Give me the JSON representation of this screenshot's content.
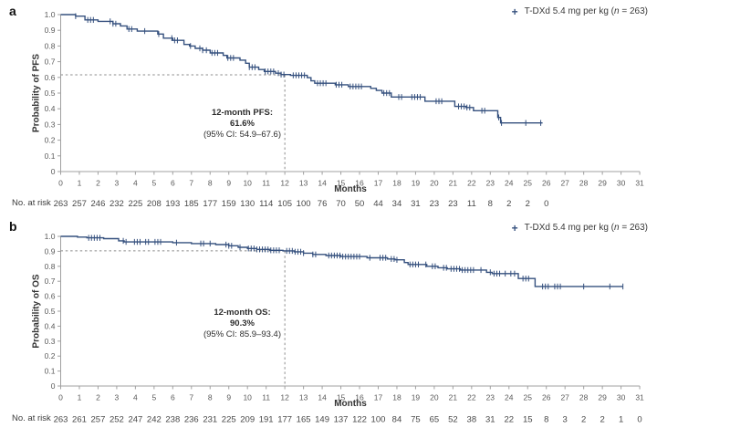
{
  "colors": {
    "curve": "#35507E",
    "dashed_line": "#8C8C8C",
    "axis": "#A0A0A0",
    "label_text": "#333333",
    "tick_text": "#5A5A5A",
    "risk_text": "#474747"
  },
  "chart_data": [
    {
      "type": "line",
      "subtype": "kaplan-meier-step",
      "panel_label": "a",
      "ylabel": "Probability of PFS",
      "xlabel": "Months",
      "legend": {
        "marker": "+",
        "series_prefix": "T-DXd 5.4 mg per kg (",
        "series_n": "n",
        "series_suffix": " = 263)"
      },
      "annotation": {
        "title": "12-month PFS:",
        "value": "61.6%",
        "ci": "(95% CI: 54.9–67.6)"
      },
      "reference": {
        "x_month": 12,
        "y_prob": 0.616
      },
      "xlim": [
        0,
        31
      ],
      "ylim": [
        0,
        1.0
      ],
      "x_ticks": [
        0,
        1,
        2,
        3,
        4,
        5,
        6,
        7,
        8,
        9,
        10,
        11,
        12,
        13,
        14,
        15,
        16,
        17,
        18,
        19,
        20,
        21,
        22,
        23,
        24,
        25,
        26,
        27,
        28,
        29,
        30,
        31
      ],
      "y_tick_labels": [
        "0",
        "0.1",
        "0.2",
        "0.3",
        "0.4",
        "0.5",
        "0.6",
        "0.7",
        "0.8",
        "0.9",
        "1.0"
      ],
      "risk_label": "No. at risk",
      "risk_values": [
        263,
        257,
        246,
        232,
        225,
        208,
        193,
        185,
        177,
        159,
        130,
        114,
        105,
        100,
        76,
        70,
        50,
        44,
        34,
        31,
        23,
        23,
        11,
        8,
        2,
        2,
        0
      ],
      "curve_points": [
        [
          0,
          1.0
        ],
        [
          0.8,
          0.99
        ],
        [
          1.3,
          0.966
        ],
        [
          2.0,
          0.957
        ],
        [
          2.8,
          0.942
        ],
        [
          3.2,
          0.928
        ],
        [
          3.55,
          0.908
        ],
        [
          4.1,
          0.895
        ],
        [
          5.2,
          0.876
        ],
        [
          5.5,
          0.85
        ],
        [
          6.0,
          0.836
        ],
        [
          6.6,
          0.81
        ],
        [
          6.9,
          0.8
        ],
        [
          7.2,
          0.785
        ],
        [
          7.6,
          0.773
        ],
        [
          8.0,
          0.756
        ],
        [
          8.7,
          0.74
        ],
        [
          8.9,
          0.724
        ],
        [
          9.6,
          0.71
        ],
        [
          9.9,
          0.69
        ],
        [
          10.1,
          0.665
        ],
        [
          10.6,
          0.65
        ],
        [
          10.9,
          0.638
        ],
        [
          11.5,
          0.627
        ],
        [
          11.8,
          0.618
        ],
        [
          12.3,
          0.613
        ],
        [
          13.2,
          0.598
        ],
        [
          13.4,
          0.578
        ],
        [
          13.6,
          0.563
        ],
        [
          14.7,
          0.553
        ],
        [
          15.4,
          0.542
        ],
        [
          16.6,
          0.53
        ],
        [
          16.9,
          0.517
        ],
        [
          17.2,
          0.5
        ],
        [
          17.7,
          0.475
        ],
        [
          19.5,
          0.448
        ],
        [
          21.1,
          0.415
        ],
        [
          21.7,
          0.408
        ],
        [
          22.1,
          0.388
        ],
        [
          23.4,
          0.345
        ],
        [
          23.55,
          0.31
        ],
        [
          25.8,
          0.31
        ]
      ],
      "censor_months": [
        0.8,
        1.45,
        1.6,
        1.75,
        2.65,
        2.8,
        2.95,
        3.65,
        3.8,
        4.5,
        5.25,
        5.95,
        6.1,
        6.25,
        6.95,
        7.45,
        7.6,
        7.8,
        8.1,
        8.25,
        8.4,
        8.95,
        9.1,
        9.25,
        10.1,
        10.25,
        10.4,
        10.95,
        11.1,
        11.25,
        11.4,
        11.65,
        11.8,
        11.95,
        12.45,
        12.6,
        12.75,
        12.9,
        13.05,
        13.75,
        13.9,
        14.05,
        14.2,
        14.75,
        14.9,
        15.05,
        15.5,
        15.65,
        15.8,
        15.95,
        16.1,
        17.3,
        17.45,
        17.6,
        18.1,
        18.25,
        18.8,
        18.95,
        19.1,
        19.25,
        20.1,
        20.25,
        20.4,
        21.3,
        21.45,
        21.6,
        21.75,
        21.9,
        22.55,
        22.7,
        23.45,
        23.6,
        24.9,
        25.7
      ]
    },
    {
      "type": "line",
      "subtype": "kaplan-meier-step",
      "panel_label": "b",
      "ylabel": "Probability of OS",
      "xlabel": "Months",
      "legend": {
        "marker": "+",
        "series_prefix": "T-DXd 5.4 mg per kg (",
        "series_n": "n",
        "series_suffix": " = 263)"
      },
      "annotation": {
        "title": "12-month OS:",
        "value": "90.3%",
        "ci": "(95% CI: 85.9–93.4)"
      },
      "reference": {
        "x_month": 12,
        "y_prob": 0.903
      },
      "xlim": [
        0,
        31
      ],
      "ylim": [
        0,
        1.0
      ],
      "x_ticks": [
        0,
        1,
        2,
        3,
        4,
        5,
        6,
        7,
        8,
        9,
        10,
        11,
        12,
        13,
        14,
        15,
        16,
        17,
        18,
        19,
        20,
        21,
        22,
        23,
        24,
        25,
        26,
        27,
        28,
        29,
        30,
        31
      ],
      "y_tick_labels": [
        "0",
        "0.1",
        "0.2",
        "0.3",
        "0.4",
        "0.5",
        "0.6",
        "0.7",
        "0.8",
        "0.9",
        "1.0"
      ],
      "risk_label": "No. at risk",
      "risk_values": [
        263,
        261,
        257,
        252,
        247,
        242,
        238,
        236,
        231,
        225,
        209,
        191,
        177,
        165,
        149,
        137,
        122,
        100,
        84,
        75,
        65,
        52,
        38,
        31,
        22,
        15,
        8,
        3,
        2,
        2,
        1,
        0
      ],
      "curve_points": [
        [
          0,
          1.0
        ],
        [
          0.9,
          0.995
        ],
        [
          1.4,
          0.99
        ],
        [
          2.3,
          0.985
        ],
        [
          3.1,
          0.97
        ],
        [
          3.4,
          0.963
        ],
        [
          6.0,
          0.958
        ],
        [
          7.0,
          0.952
        ],
        [
          8.3,
          0.945
        ],
        [
          9.0,
          0.937
        ],
        [
          9.5,
          0.927
        ],
        [
          10.0,
          0.919
        ],
        [
          10.5,
          0.913
        ],
        [
          11.2,
          0.907
        ],
        [
          11.9,
          0.903
        ],
        [
          12.5,
          0.897
        ],
        [
          13.0,
          0.888
        ],
        [
          13.5,
          0.879
        ],
        [
          14.2,
          0.872
        ],
        [
          15.0,
          0.865
        ],
        [
          16.4,
          0.857
        ],
        [
          17.5,
          0.849
        ],
        [
          17.9,
          0.843
        ],
        [
          18.4,
          0.825
        ],
        [
          18.6,
          0.812
        ],
        [
          19.6,
          0.8
        ],
        [
          20.2,
          0.79
        ],
        [
          20.7,
          0.783
        ],
        [
          21.4,
          0.775
        ],
        [
          22.8,
          0.76
        ],
        [
          23.1,
          0.751
        ],
        [
          24.5,
          0.718
        ],
        [
          25.4,
          0.665
        ],
        [
          30.1,
          0.665
        ]
      ],
      "censor_months": [
        1.5,
        1.65,
        1.8,
        1.95,
        2.1,
        3.35,
        3.5,
        3.95,
        4.1,
        4.25,
        4.55,
        4.7,
        5.05,
        5.2,
        5.35,
        6.2,
        7.5,
        7.65,
        8.0,
        8.85,
        9.0,
        9.15,
        9.6,
        10.05,
        10.2,
        10.35,
        10.5,
        10.65,
        10.8,
        10.95,
        11.1,
        11.25,
        11.4,
        11.55,
        11.7,
        12.1,
        12.25,
        12.4,
        12.55,
        12.7,
        12.85,
        13.0,
        13.5,
        13.65,
        14.35,
        14.5,
        14.65,
        14.8,
        14.95,
        15.1,
        15.25,
        15.4,
        15.55,
        15.7,
        15.85,
        16.0,
        16.55,
        17.1,
        17.25,
        17.4,
        17.7,
        17.85,
        18.0,
        18.7,
        18.85,
        19.0,
        19.15,
        19.55,
        19.9,
        20.05,
        20.5,
        20.65,
        20.9,
        21.05,
        21.2,
        21.35,
        21.5,
        21.65,
        21.8,
        21.95,
        22.1,
        22.5,
        23.0,
        23.2,
        23.35,
        23.5,
        23.8,
        24.1,
        24.3,
        24.75,
        24.9,
        25.05,
        25.8,
        25.95,
        26.1,
        26.45,
        26.6,
        26.75,
        28.0,
        29.4,
        30.1
      ]
    }
  ]
}
